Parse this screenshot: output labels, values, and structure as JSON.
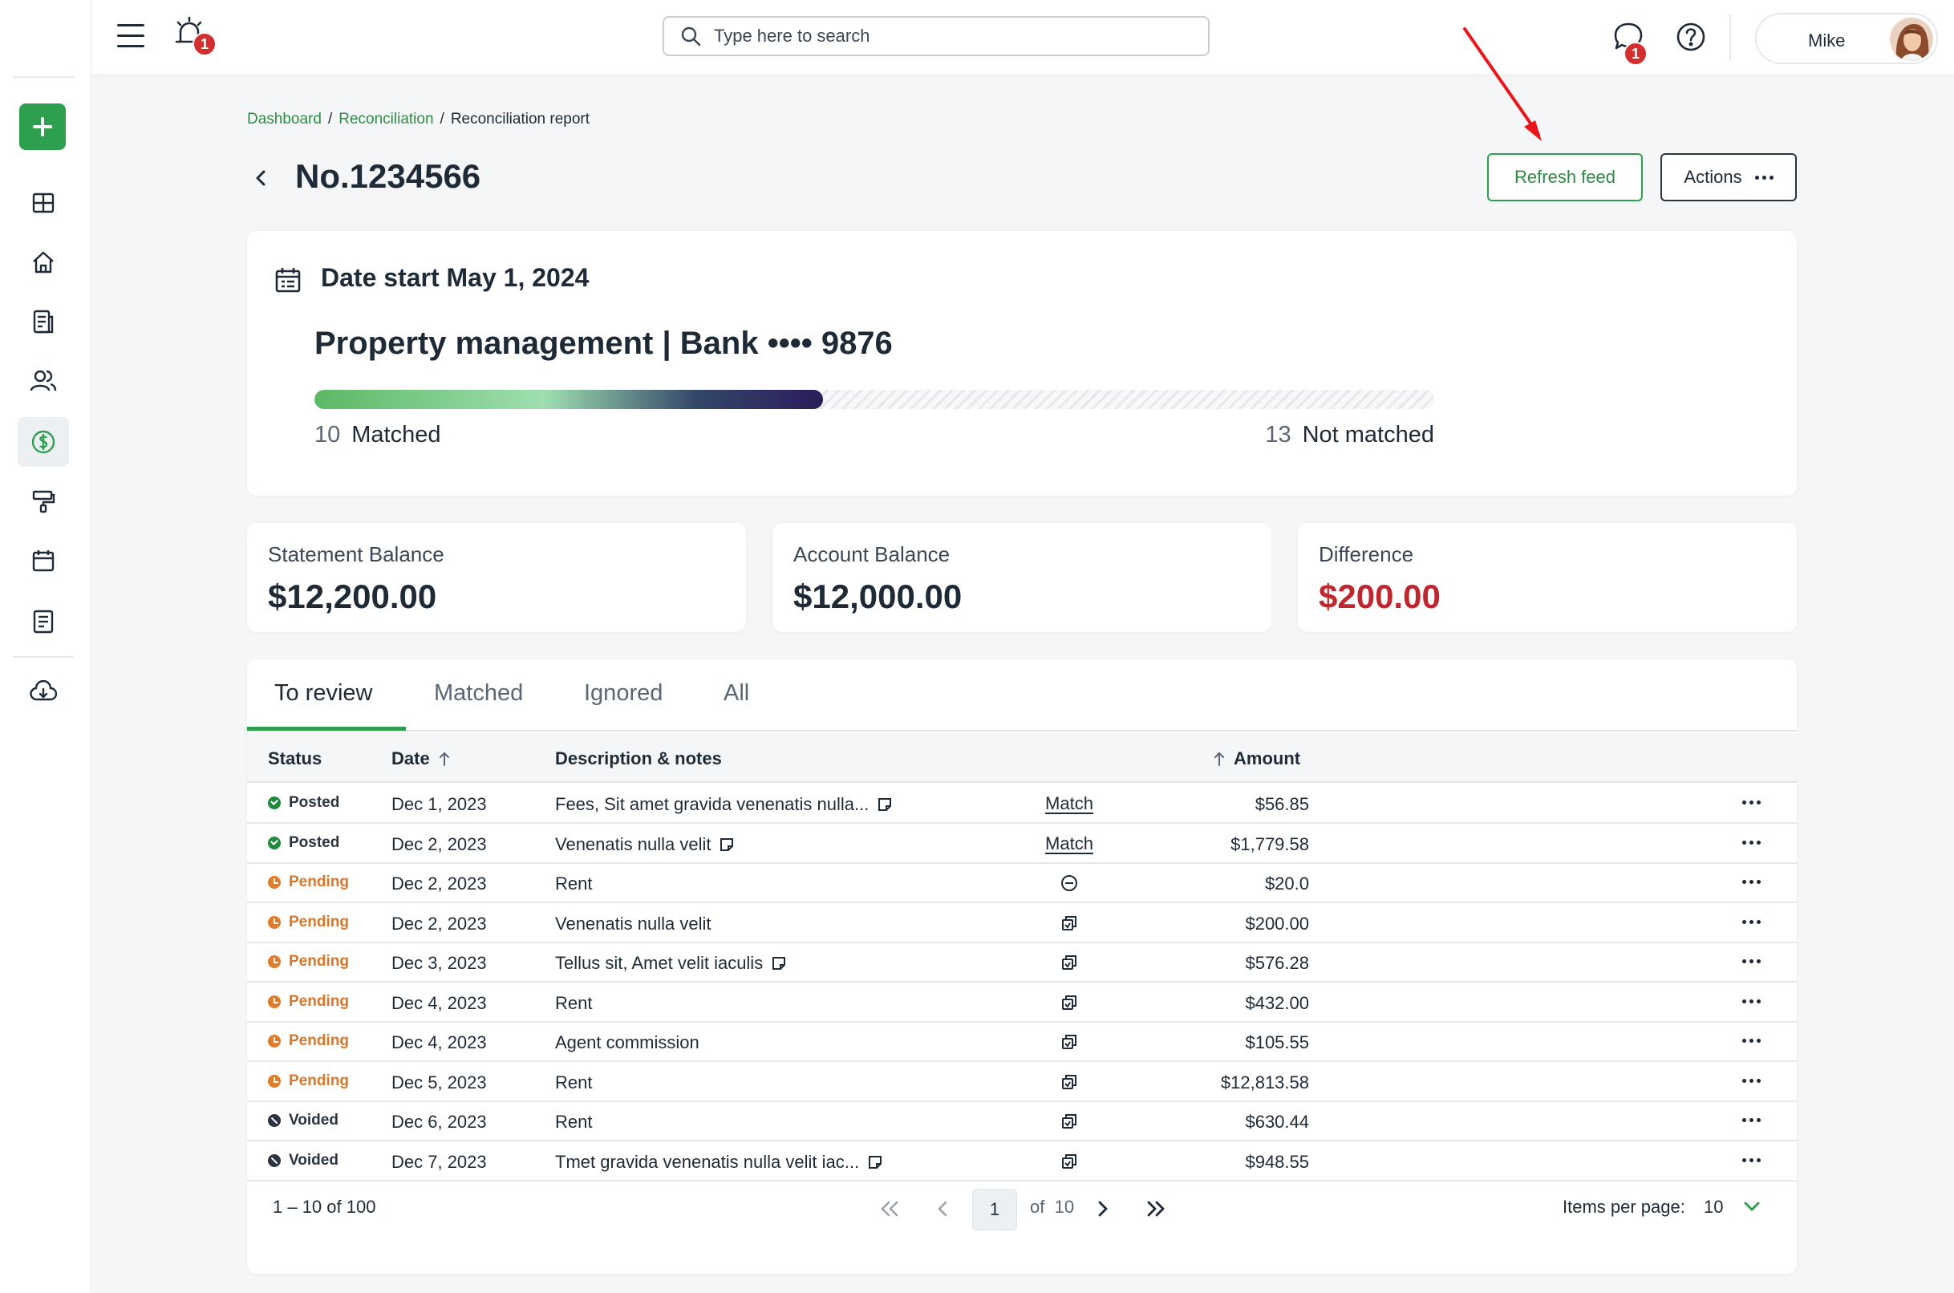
{
  "topbar": {
    "alarm_badge": "1",
    "search_placeholder": "Type here to search",
    "chat_badge": "1",
    "user_name": "Mike"
  },
  "breadcrumb": {
    "items": [
      "Dashboard",
      "Reconciliation",
      "Reconciliation report"
    ],
    "separator": "/"
  },
  "page": {
    "title": "No.1234566",
    "refresh_label": "Refresh feed",
    "actions_label": "Actions"
  },
  "summary": {
    "date_start": "Date start May 1, 2024",
    "account": "Property management | Bank •••• 9876",
    "matched_count": "10",
    "matched_label": "Matched",
    "not_matched_count": "13",
    "not_matched_label": "Not matched",
    "progress_fraction": 0.4545
  },
  "balances": {
    "statement": {
      "label": "Statement Balance",
      "value": "$12,200.00"
    },
    "account": {
      "label": "Account Balance",
      "value": "$12,000.00"
    },
    "difference": {
      "label": "Difference",
      "value": "$200.00"
    }
  },
  "tabs": [
    "To review",
    "Matched",
    "Ignored",
    "All"
  ],
  "table": {
    "headers": {
      "status": "Status",
      "date": "Date",
      "description": "Description & notes",
      "amount": "Amount"
    },
    "rows": [
      {
        "status": "Posted",
        "kind": "posted",
        "date": "Dec 1, 2023",
        "description": "Fees, Sit amet gravida venenatis nulla...",
        "note": true,
        "amount": "$56.85",
        "action": "Match"
      },
      {
        "status": "Posted",
        "kind": "posted",
        "date": "Dec 2, 2023",
        "description": "Venenatis nulla velit",
        "note": true,
        "amount": "$1,779.58",
        "action": "Match"
      },
      {
        "status": "Pending",
        "kind": "pending",
        "date": "Dec 2, 2023",
        "description": "Rent",
        "note": false,
        "amount": "$20.0",
        "action": "minus-circle-icon"
      },
      {
        "status": "Pending",
        "kind": "pending",
        "date": "Dec 2, 2023",
        "description": "Venenatis nulla velit",
        "note": false,
        "amount": "$200.00",
        "action": "copy-icon"
      },
      {
        "status": "Pending",
        "kind": "pending",
        "date": "Dec 3, 2023",
        "description": "Tellus sit, Amet velit iaculis",
        "note": true,
        "amount": "$576.28",
        "action": "copy-icon"
      },
      {
        "status": "Pending",
        "kind": "pending",
        "date": "Dec 4, 2023",
        "description": "Rent",
        "note": false,
        "amount": "$432.00",
        "action": "copy-icon"
      },
      {
        "status": "Pending",
        "kind": "pending",
        "date": "Dec 4, 2023",
        "description": "Agent commission",
        "note": false,
        "amount": "$105.55",
        "action": "copy-icon"
      },
      {
        "status": "Pending",
        "kind": "pending",
        "date": "Dec 5, 2023",
        "description": "Rent",
        "note": false,
        "amount": "$12,813.58",
        "action": "copy-icon"
      },
      {
        "status": "Voided",
        "kind": "voided",
        "date": "Dec 6, 2023",
        "description": "Rent",
        "note": false,
        "amount": "$630.44",
        "action": "copy-icon"
      },
      {
        "status": "Voided",
        "kind": "voided",
        "date": "Dec 7, 2023",
        "description": "Tmet gravida venenatis nulla velit iac...",
        "note": true,
        "amount": "$948.55",
        "action": "copy-icon"
      }
    ]
  },
  "pagination": {
    "range": "1 – 10 of 100",
    "current": "1",
    "of_label": "of",
    "total": "10",
    "items_per_page_label": "Items per page:",
    "items_per_page": "10"
  },
  "colors": {
    "brand_green": "#2e9e4f",
    "link_green": "#2e8b45",
    "negative_red": "#c0262d",
    "pending_orange": "#e07b2a",
    "badge_red": "#d32f2f"
  }
}
